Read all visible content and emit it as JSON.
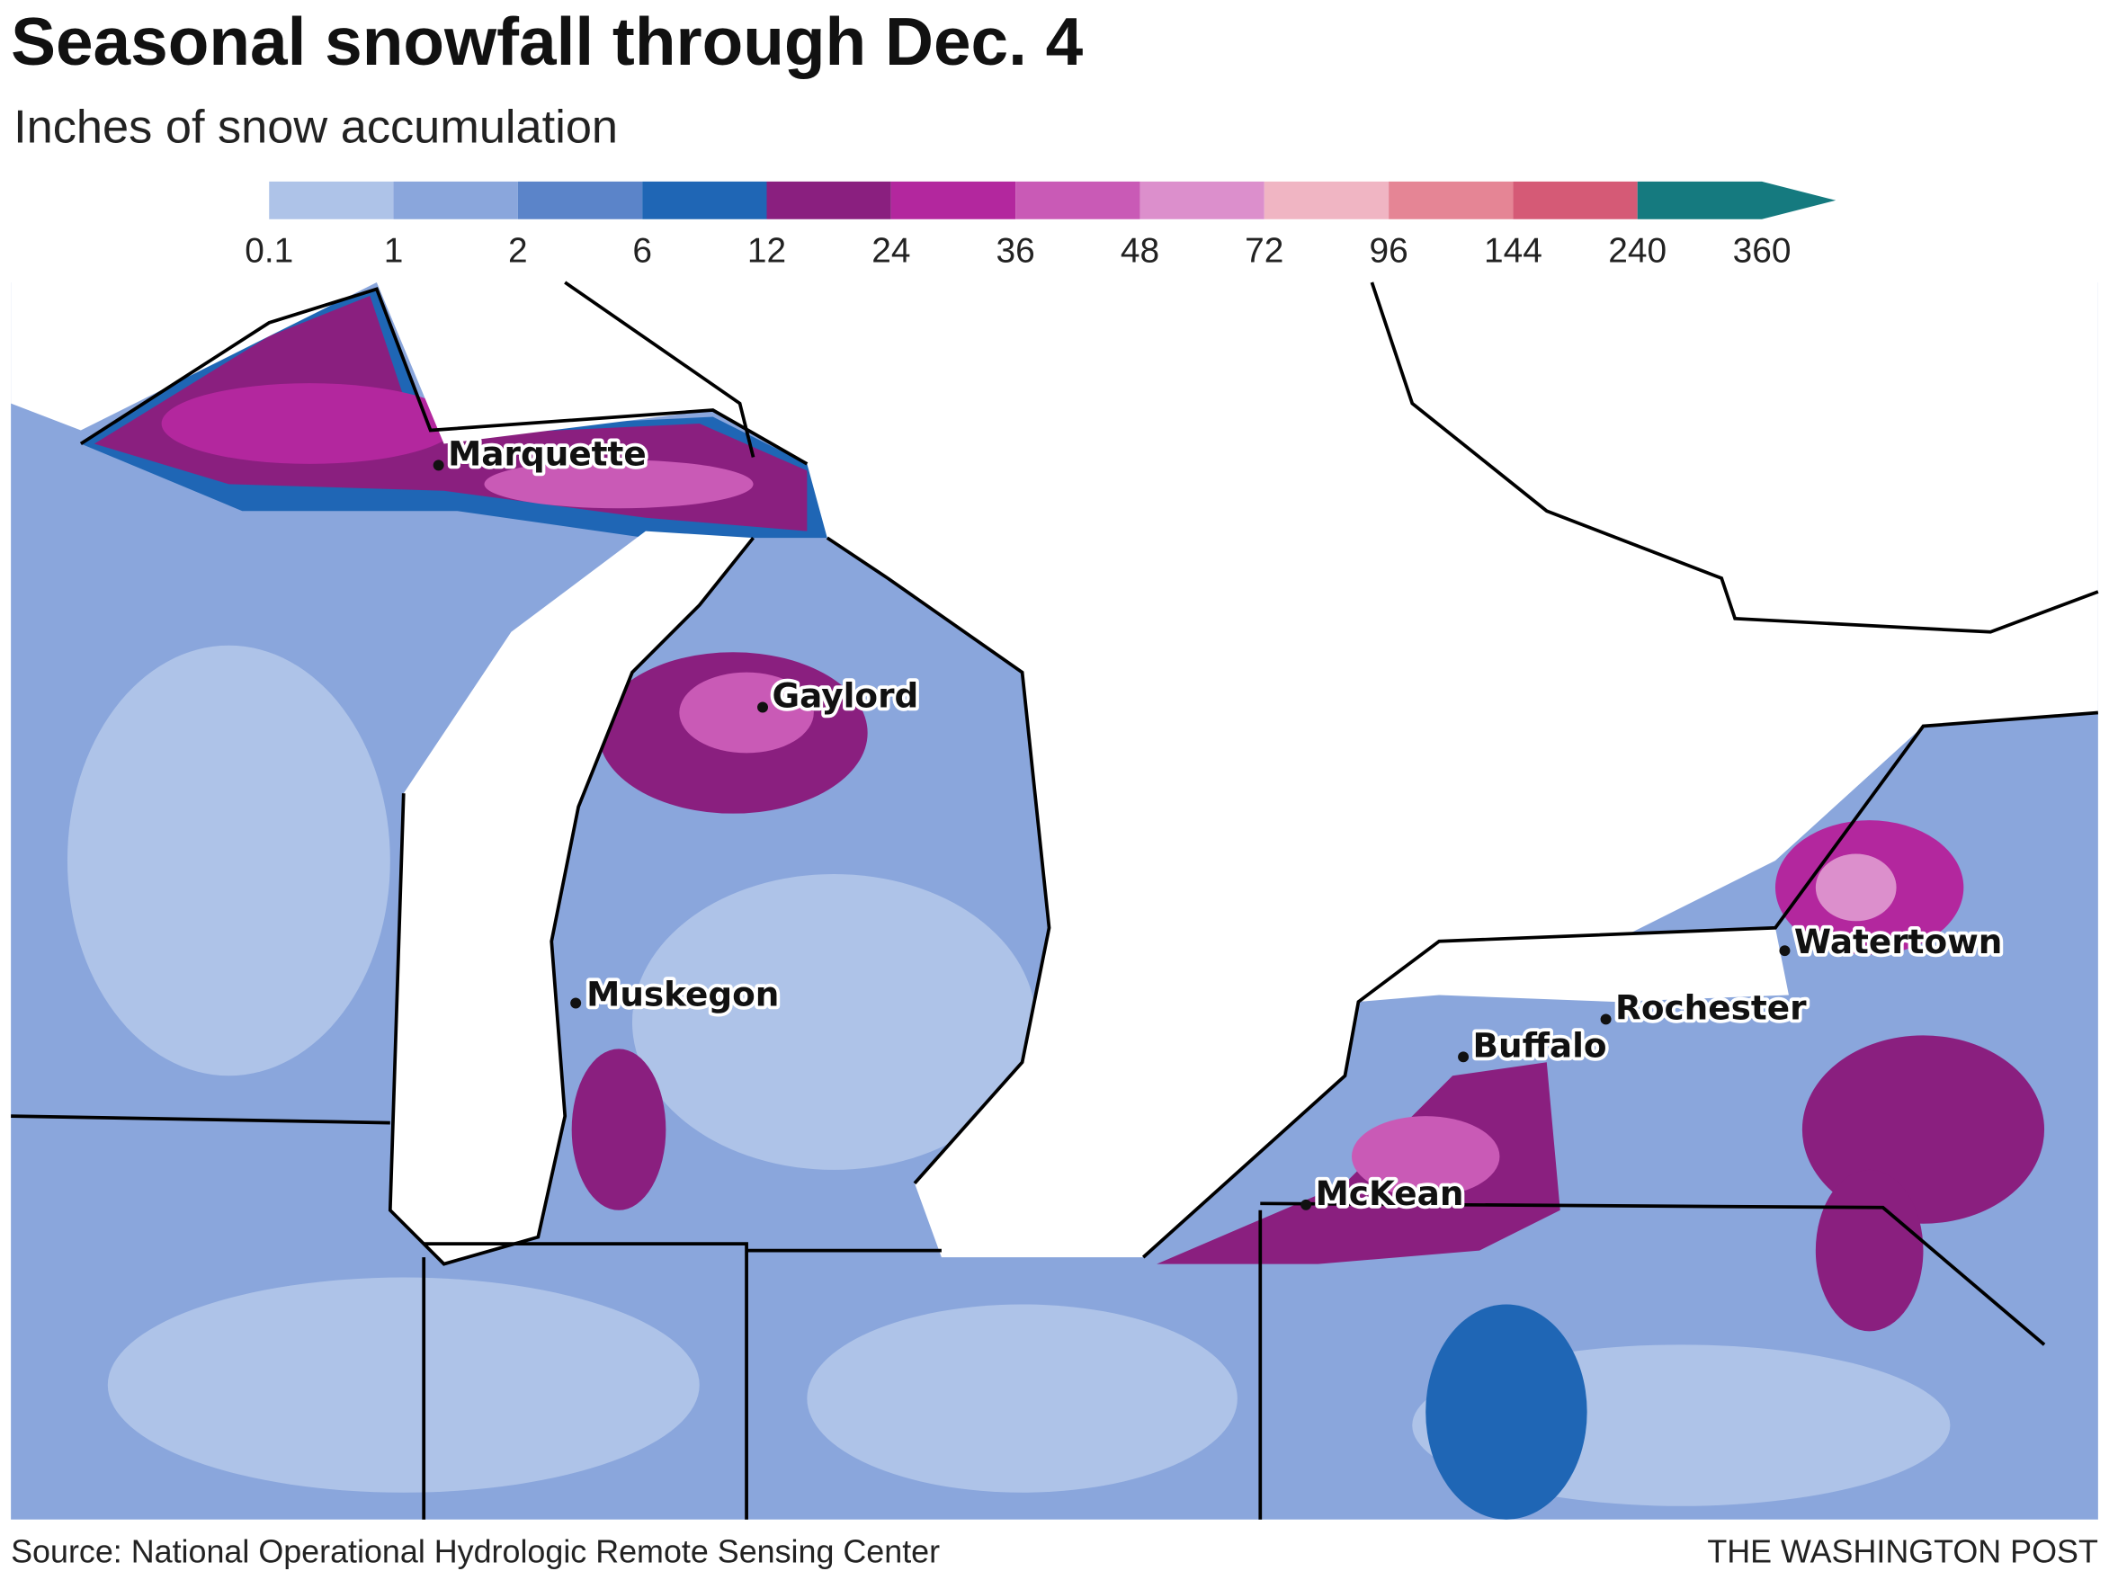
{
  "title": "Seasonal snowfall through Dec. 4",
  "subtitle": "Inches of snow accumulation",
  "legend": {
    "labels": [
      "0.1",
      "1",
      "2",
      "6",
      "12",
      "24",
      "36",
      "48",
      "72",
      "96",
      "144",
      "240",
      "360"
    ],
    "colors": [
      "#aec3e8",
      "#8aa6dc",
      "#5b84c9",
      "#1f66b5",
      "#8a1f7f",
      "#b3279e",
      "#c95ab6",
      "#dc8fcc",
      "#f0b5c3",
      "#e58595",
      "#d55a76",
      "#157a7f"
    ]
  },
  "cities": [
    {
      "name": "Marquette"
    },
    {
      "name": "Gaylord"
    },
    {
      "name": "Muskegon"
    },
    {
      "name": "Watertown"
    },
    {
      "name": "Rochester"
    },
    {
      "name": "Buffalo"
    },
    {
      "name": "McKean"
    }
  ],
  "source": "Source: National Operational Hydrologic Remote Sensing Center",
  "credit": "THE WASHINGTON POST"
}
